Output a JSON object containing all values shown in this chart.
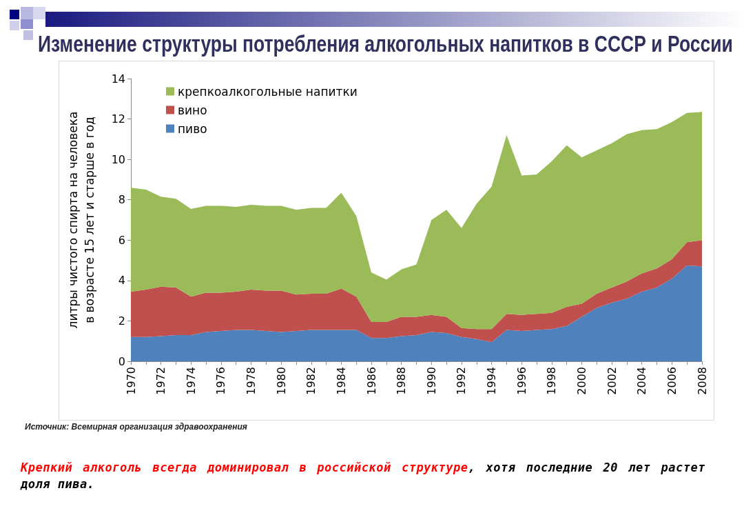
{
  "chart_data": {
    "type": "area",
    "stacked": true,
    "title": "Изменение структуры потребления алкогольных напитков в СССР и России",
    "ylabel": "литры чистого спирта на человека в возрасте 15 лет и старше в год",
    "categories": [
      "1970",
      null,
      "1972",
      null,
      "1974",
      null,
      "1976",
      null,
      "1978",
      null,
      "1980",
      null,
      "1982",
      null,
      "1984",
      null,
      "1986",
      null,
      "1988",
      null,
      "1990",
      null,
      "1992",
      null,
      "1994",
      null,
      "1996",
      null,
      "1998",
      null,
      "2000",
      null,
      "2002",
      null,
      "2004",
      null,
      "2006",
      null,
      "2008"
    ],
    "series": [
      {
        "name": "пиво",
        "color": "#4f81bd",
        "values": [
          1.2,
          1.2,
          1.25,
          1.3,
          1.3,
          1.45,
          1.5,
          1.55,
          1.55,
          1.5,
          1.45,
          1.5,
          1.55,
          1.55,
          1.55,
          1.55,
          1.15,
          1.15,
          1.25,
          1.3,
          1.45,
          1.4,
          1.2,
          1.1,
          0.95,
          1.55,
          1.5,
          1.55,
          1.6,
          1.75,
          2.2,
          2.65,
          2.9,
          3.1,
          3.45,
          3.65,
          4.1,
          4.75,
          4.7
        ]
      },
      {
        "name": "вино",
        "color": "#c0504d",
        "values": [
          2.25,
          2.35,
          2.45,
          2.35,
          1.9,
          1.95,
          1.9,
          1.9,
          2.0,
          2.0,
          2.05,
          1.8,
          1.8,
          1.8,
          2.05,
          1.65,
          0.8,
          0.8,
          0.95,
          0.9,
          0.85,
          0.8,
          0.45,
          0.5,
          0.65,
          0.8,
          0.8,
          0.8,
          0.8,
          0.95,
          0.65,
          0.7,
          0.75,
          0.85,
          0.9,
          0.95,
          0.95,
          1.15,
          1.3
        ]
      },
      {
        "name": "крепкоалкогольные напитки",
        "color": "#9bbb59",
        "values": [
          5.15,
          4.95,
          4.45,
          4.4,
          4.35,
          4.3,
          4.3,
          4.2,
          4.2,
          4.2,
          4.2,
          4.2,
          4.25,
          4.25,
          4.75,
          4.0,
          2.45,
          2.1,
          2.35,
          2.6,
          4.7,
          5.3,
          4.95,
          6.2,
          7.05,
          8.85,
          6.9,
          6.9,
          7.5,
          8.0,
          7.25,
          7.1,
          7.15,
          7.3,
          7.1,
          6.9,
          6.8,
          6.4,
          6.35
        ]
      }
    ],
    "ylim": [
      0,
      14
    ],
    "yticks": [
      0,
      2,
      4,
      6,
      8,
      10,
      12,
      14
    ],
    "grid": false,
    "legend": "top left",
    "annotations": [
      "Источник: Всемирная организация здравоохранения",
      "Крепкий алкоголь всегда доминировал в российской структуре, хотя последние 20 лет растет доля пива."
    ]
  }
}
